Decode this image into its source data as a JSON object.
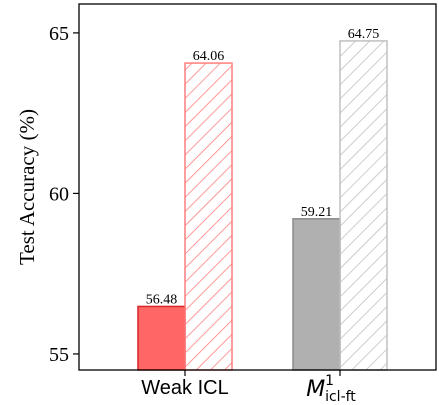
{
  "chart_data": {
    "type": "bar",
    "ylabel": "Test Accuracy (%)",
    "ylim": [
      54.5,
      65.9
    ],
    "yticks": [
      55,
      60,
      65
    ],
    "grid": false,
    "groups": [
      {
        "label": "Weak ICL",
        "bars": [
          {
            "value": 56.48,
            "value_label": "56.48",
            "style": "solid",
            "fill": "#ff6666",
            "edge": "#d62728"
          },
          {
            "value": 64.06,
            "value_label": "64.06",
            "style": "hatched",
            "fill": "#ffffff",
            "edge": "#ff7f7f"
          }
        ]
      },
      {
        "label_main": "M",
        "label_sup": "1",
        "label_sub": "icl-ft",
        "bars": [
          {
            "value": 59.21,
            "value_label": "59.21",
            "style": "solid",
            "fill": "#b0b0b0",
            "edge": "#8c8c8c"
          },
          {
            "value": 64.75,
            "value_label": "64.75",
            "style": "hatched",
            "fill": "#ffffff",
            "edge": "#c0c0c0"
          }
        ]
      }
    ]
  }
}
